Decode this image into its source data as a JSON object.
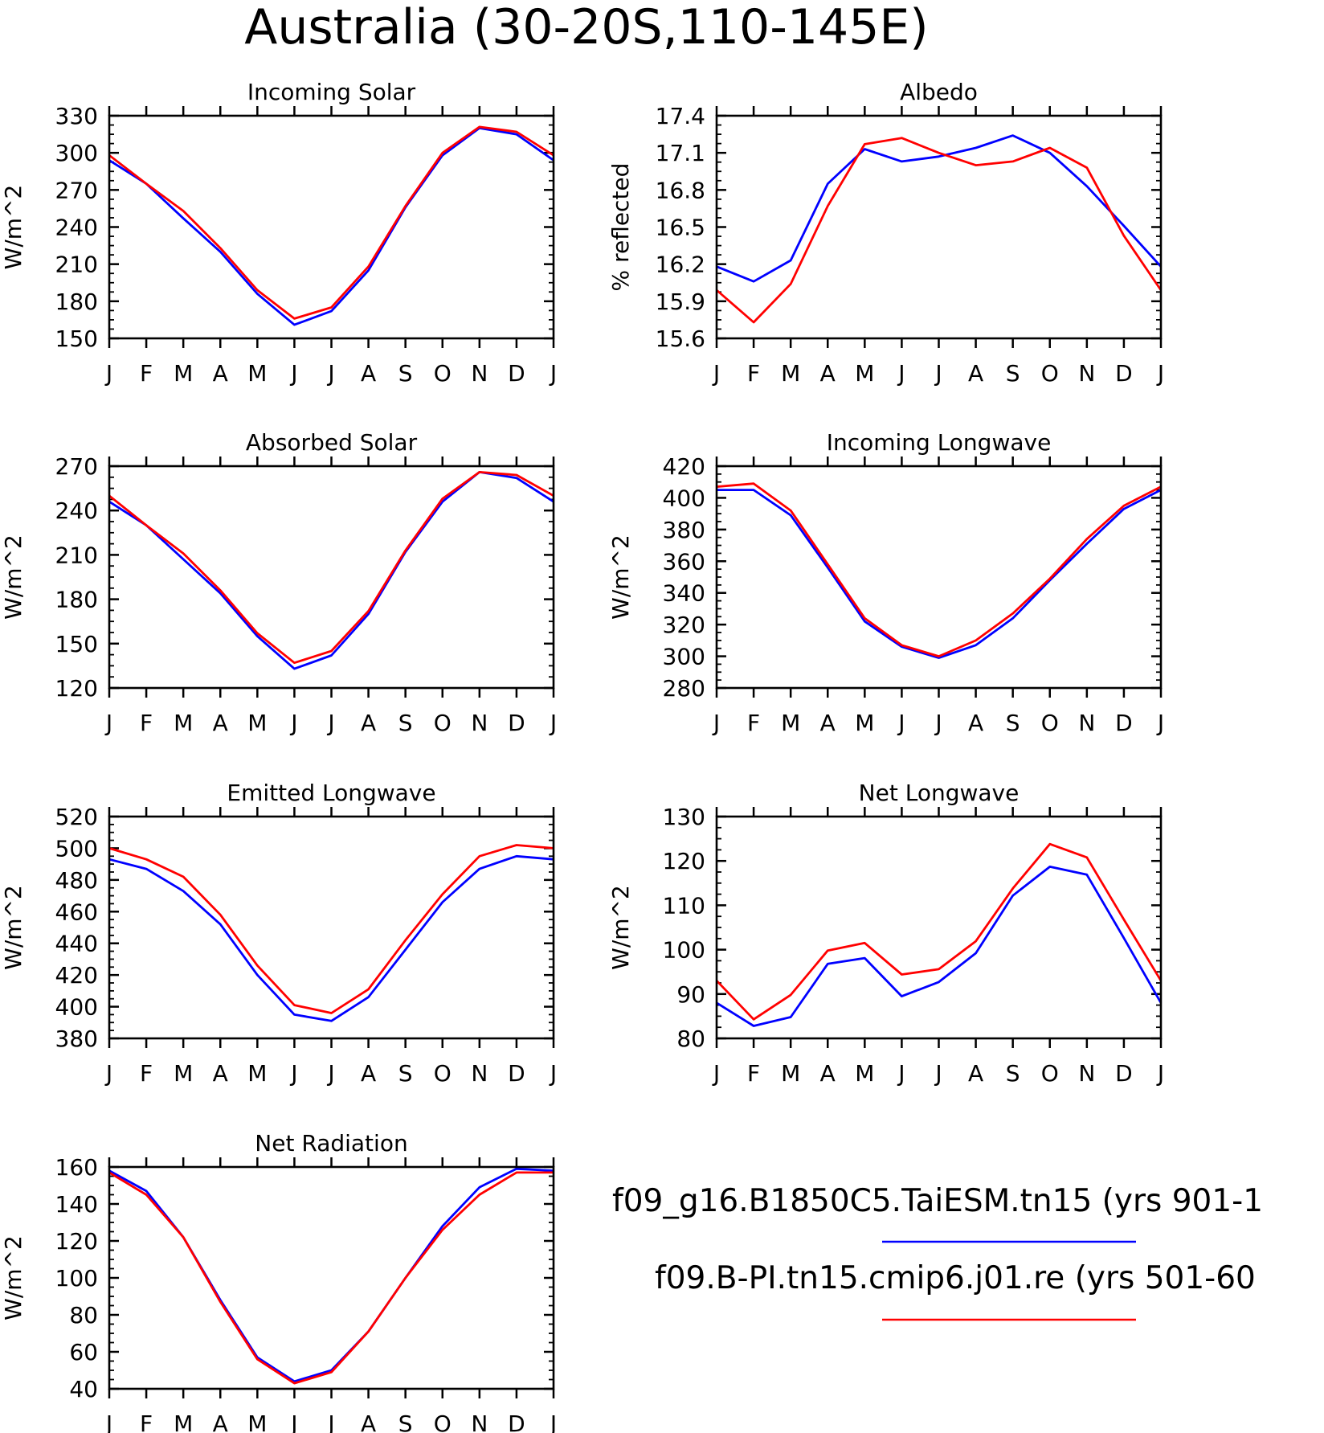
{
  "title": "Australia (30-20S,110-145E)",
  "months": [
    "J",
    "F",
    "M",
    "A",
    "M",
    "J",
    "J",
    "A",
    "S",
    "O",
    "N",
    "D",
    "J"
  ],
  "legend": [
    {
      "label": "f09_g16.B1850C5.TaiESM.tn15 (yrs 901-1",
      "color": "#0000ff"
    },
    {
      "label": "f09.B-PI.tn15.cmip6.j01.re (yrs 501-60",
      "color": "#ff0000"
    }
  ],
  "chart_data": [
    {
      "type": "line",
      "title": "Incoming Solar",
      "ylabel": "W/m^2",
      "ylim": [
        150,
        330
      ],
      "yticks": [
        150,
        180,
        210,
        240,
        270,
        300,
        330
      ],
      "yticklabels": [
        "150",
        "180",
        "210",
        "240",
        "270",
        "300",
        "330"
      ],
      "categories": [
        "J",
        "F",
        "M",
        "A",
        "M",
        "J",
        "J",
        "A",
        "S",
        "O",
        "N",
        "D",
        "J"
      ],
      "series": [
        {
          "color": "#0000ff",
          "values": [
            294,
            275,
            247,
            220,
            186,
            161,
            172,
            205,
            256,
            298,
            320,
            315,
            294
          ]
        },
        {
          "color": "#ff0000",
          "values": [
            298,
            275,
            253,
            223,
            189,
            166,
            175,
            208,
            257,
            300,
            321,
            317,
            298
          ]
        }
      ]
    },
    {
      "type": "line",
      "title": "Albedo",
      "ylabel": "% reflected",
      "ylim": [
        15.6,
        17.4
      ],
      "yticks": [
        15.6,
        15.9,
        16.2,
        16.5,
        16.8,
        17.1,
        17.4
      ],
      "yticklabels": [
        "15.6",
        "15.9",
        "16.2",
        "16.5",
        "16.8",
        "17.1",
        "17.4"
      ],
      "categories": [
        "J",
        "F",
        "M",
        "A",
        "M",
        "J",
        "J",
        "A",
        "S",
        "O",
        "N",
        "D",
        "J"
      ],
      "series": [
        {
          "color": "#0000ff",
          "values": [
            16.18,
            16.06,
            16.23,
            16.85,
            17.13,
            17.03,
            17.07,
            17.14,
            17.24,
            17.1,
            16.83,
            16.51,
            16.18
          ]
        },
        {
          "color": "#ff0000",
          "values": [
            15.99,
            15.73,
            16.04,
            16.67,
            17.17,
            17.22,
            17.1,
            17.0,
            17.03,
            17.14,
            16.98,
            16.43,
            15.99
          ]
        }
      ]
    },
    {
      "type": "line",
      "title": "Absorbed Solar",
      "ylabel": "W/m^2",
      "ylim": [
        120,
        270
      ],
      "yticks": [
        120,
        150,
        180,
        210,
        240,
        270
      ],
      "yticklabels": [
        "120",
        "150",
        "180",
        "210",
        "240",
        "270"
      ],
      "categories": [
        "J",
        "F",
        "M",
        "A",
        "M",
        "J",
        "J",
        "A",
        "S",
        "O",
        "N",
        "D",
        "J"
      ],
      "series": [
        {
          "color": "#0000ff",
          "values": [
            246,
            230,
            207,
            184,
            155,
            133,
            142,
            170,
            212,
            246,
            266,
            262,
            246
          ]
        },
        {
          "color": "#ff0000",
          "values": [
            250,
            230,
            211,
            186,
            157,
            137,
            145,
            172,
            213,
            248,
            266,
            264,
            250
          ]
        }
      ]
    },
    {
      "type": "line",
      "title": "Incoming Longwave",
      "ylabel": "W/m^2",
      "ylim": [
        280,
        420
      ],
      "yticks": [
        280,
        300,
        320,
        340,
        360,
        380,
        400,
        420
      ],
      "yticklabels": [
        "280",
        "300",
        "320",
        "340",
        "360",
        "380",
        "400",
        "420"
      ],
      "categories": [
        "J",
        "F",
        "M",
        "A",
        "M",
        "J",
        "J",
        "A",
        "S",
        "O",
        "N",
        "D",
        "J"
      ],
      "series": [
        {
          "color": "#0000ff",
          "values": [
            405,
            405,
            389,
            356,
            322,
            306,
            299,
            307,
            324,
            348,
            371,
            393,
            405
          ]
        },
        {
          "color": "#ff0000",
          "values": [
            407,
            409,
            392,
            358,
            324,
            307,
            300,
            310,
            327,
            349,
            374,
            395,
            407
          ]
        }
      ]
    },
    {
      "type": "line",
      "title": "Emitted Longwave",
      "ylabel": "W/m^2",
      "ylim": [
        380,
        520
      ],
      "yticks": [
        380,
        400,
        420,
        440,
        460,
        480,
        500,
        520
      ],
      "yticklabels": [
        "380",
        "400",
        "420",
        "440",
        "460",
        "480",
        "500",
        "520"
      ],
      "categories": [
        "J",
        "F",
        "M",
        "A",
        "M",
        "J",
        "J",
        "A",
        "S",
        "O",
        "N",
        "D",
        "J"
      ],
      "series": [
        {
          "color": "#0000ff",
          "values": [
            493,
            487,
            473,
            452,
            420,
            395,
            391,
            406,
            436,
            466,
            487,
            495,
            493
          ]
        },
        {
          "color": "#ff0000",
          "values": [
            500,
            493,
            482,
            458,
            426,
            401,
            396,
            411,
            442,
            471,
            495,
            502,
            500
          ]
        }
      ]
    },
    {
      "type": "line",
      "title": "Net Longwave",
      "ylabel": "W/m^2",
      "ylim": [
        80,
        130
      ],
      "yticks": [
        80,
        90,
        100,
        110,
        120,
        130
      ],
      "yticklabels": [
        "80",
        "90",
        "100",
        "110",
        "120",
        "130"
      ],
      "categories": [
        "J",
        "F",
        "M",
        "A",
        "M",
        "J",
        "J",
        "A",
        "S",
        "O",
        "N",
        "D",
        "J"
      ],
      "series": [
        {
          "color": "#0000ff",
          "values": [
            88,
            82.8,
            84.8,
            96.8,
            98.1,
            89.5,
            92.7,
            99.2,
            112.2,
            118.7,
            116.9,
            102.6,
            88
          ]
        },
        {
          "color": "#ff0000",
          "values": [
            93,
            84.3,
            89.8,
            99.8,
            101.5,
            94.4,
            95.6,
            101.9,
            113.8,
            123.8,
            120.8,
            106.8,
            93
          ]
        }
      ]
    },
    {
      "type": "line",
      "title": "Net Radiation",
      "ylabel": "W/m^2",
      "ylim": [
        40,
        160
      ],
      "yticks": [
        40,
        60,
        80,
        100,
        120,
        140,
        160
      ],
      "yticklabels": [
        "40",
        "60",
        "80",
        "100",
        "120",
        "140",
        "160"
      ],
      "categories": [
        "J",
        "F",
        "M",
        "A",
        "M",
        "J",
        "J",
        "A",
        "S",
        "O",
        "N",
        "D",
        "J"
      ],
      "series": [
        {
          "color": "#0000ff",
          "values": [
            158,
            147,
            122,
            88,
            57,
            44,
            50,
            71,
            100,
            128,
            149,
            159,
            158
          ]
        },
        {
          "color": "#ff0000",
          "values": [
            157,
            145,
            122,
            87,
            56,
            43,
            49,
            71,
            100,
            126,
            145,
            157,
            157
          ]
        }
      ]
    }
  ]
}
